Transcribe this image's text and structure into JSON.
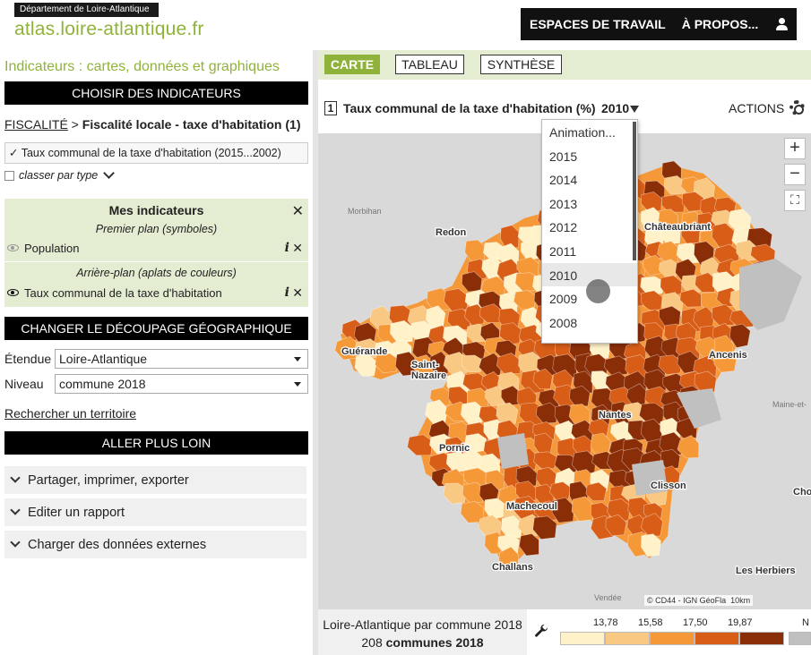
{
  "header": {
    "dept_badge": "Département de Loire-Atlantique",
    "logo_bold": "atlas",
    "logo_rest": ".loire-atlantique.fr",
    "nav": [
      "ESPACES DE TRAVAIL",
      "À PROPOS..."
    ],
    "user_icon": "user-icon"
  },
  "left": {
    "title": "Indicateurs : cartes, données et graphiques",
    "choose_bar": "CHOISIR DES INDICATEURS",
    "breadcrumb_link": "FISCALITÉ",
    "breadcrumb_sep": " > ",
    "breadcrumb_current": "Fiscalité locale - taxe d'habitation (1)",
    "indicator_value": "✓ Taux communal de la taxe d'habitation (2015...2002)",
    "classify_label": "classer par type",
    "mes_indicateurs": {
      "title": "Mes indicateurs",
      "foreground_label": "Premier plan (symboles)",
      "foreground_item": "Population",
      "background_label": "Arrière-plan (aplats de couleurs)",
      "background_item": "Taux communal de la taxe d'habitation"
    },
    "decoupage_bar": "CHANGER LE DÉCOUPAGE GÉOGRAPHIQUE",
    "etendue_label": "Étendue",
    "etendue_value": "Loire-Atlantique",
    "niveau_label": "Niveau",
    "niveau_value": "commune 2018",
    "search_link": "Rechercher un territoire",
    "loin_bar": "ALLER PLUS LOIN",
    "accordions": [
      "Partager, imprimer, exporter",
      "Editer un rapport",
      "Charger des données externes"
    ]
  },
  "right": {
    "tabs": [
      "CARTE",
      "TABLEAU",
      "SYNTHÈSE"
    ],
    "active_tab": "CARTE",
    "map_number": "1",
    "map_title": "Taux communal de la taxe d'habitation (%)",
    "map_year": "2010",
    "actions_label": "ACTIONS",
    "dropdown_options": [
      "Animation...",
      "2015",
      "2014",
      "2013",
      "2012",
      "2011",
      "2010",
      "2009",
      "2008"
    ],
    "dropdown_hover": "2010",
    "map_labels": [
      {
        "name": "Morbihan"
      },
      {
        "name": "Redon"
      },
      {
        "name": "Châteaubriant"
      },
      {
        "name": "Guérande"
      },
      {
        "name": "Saint-\nNazaire"
      },
      {
        "name": "Ancenis"
      },
      {
        "name": "Nantes"
      },
      {
        "name": "Maine-et-"
      },
      {
        "name": "Pornic"
      },
      {
        "name": "Clisson"
      },
      {
        "name": "Machecoul"
      },
      {
        "name": "Cho"
      },
      {
        "name": "Challans"
      },
      {
        "name": "Les Herbiers"
      },
      {
        "name": "Vendée"
      }
    ],
    "attribution": "© CD44 - IGN GéoFla",
    "scale_label": "10km",
    "zoom_in": "+",
    "zoom_out": "−",
    "footer_line1": "Loire-Atlantique par commune 2018",
    "footer_count": "208",
    "footer_unit": "communes 2018",
    "legend_thresholds": [
      "13,78",
      "15,58",
      "17,50",
      "19,87",
      "N"
    ],
    "legend_colors": [
      "#fff2c8",
      "#f9c883",
      "#f59838",
      "#d85e18",
      "#8a2e08",
      "#c0c0c0"
    ]
  }
}
